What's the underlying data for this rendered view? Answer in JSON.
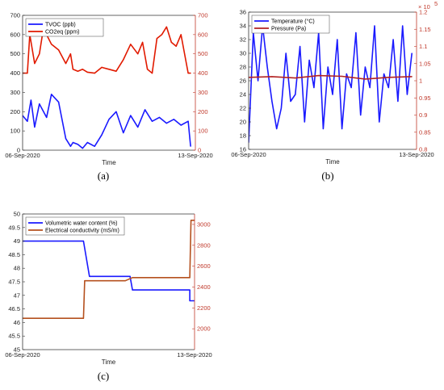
{
  "chart_data": [
    {
      "type": "line",
      "panel_label": "(a)",
      "xlabel": "Time",
      "x_ticks": [
        "06-Sep-2020",
        "13-Sep-2020"
      ],
      "y_left": {
        "lim": [
          0,
          700
        ],
        "ticks": [
          0,
          100,
          200,
          300,
          400,
          500,
          600,
          700
        ]
      },
      "y_right": {
        "lim": [
          0,
          700
        ],
        "ticks": [
          0,
          100,
          200,
          300,
          400,
          500,
          600,
          700
        ]
      },
      "legend": "top-left",
      "series": [
        {
          "name": "TVOC (ppb)",
          "color": "#1a1aff",
          "axis": "left",
          "x": [
            0,
            0.2,
            0.35,
            0.5,
            0.7,
            1.0,
            1.2,
            1.5,
            1.8,
            2.0,
            2.1,
            2.3,
            2.5,
            2.7,
            3.0,
            3.3,
            3.6,
            3.9,
            4.2,
            4.5,
            4.8,
            5.1,
            5.4,
            5.7,
            6.0,
            6.3,
            6.6,
            6.9,
            7.0
          ],
          "values": [
            180,
            150,
            260,
            120,
            240,
            170,
            290,
            250,
            60,
            20,
            40,
            30,
            10,
            40,
            20,
            80,
            160,
            200,
            90,
            180,
            120,
            210,
            150,
            170,
            140,
            160,
            130,
            150,
            20
          ]
        },
        {
          "name": "CO2eq (ppm)",
          "color": "#e11a00",
          "axis": "right",
          "x": [
            0,
            0.2,
            0.3,
            0.5,
            0.7,
            0.9,
            1.0,
            1.2,
            1.5,
            1.8,
            2.0,
            2.1,
            2.3,
            2.5,
            2.7,
            3.0,
            3.3,
            3.6,
            3.9,
            4.2,
            4.5,
            4.8,
            5.0,
            5.2,
            5.4,
            5.6,
            5.8,
            6.0,
            6.2,
            6.4,
            6.6,
            6.9,
            7.0
          ],
          "values": [
            400,
            400,
            600,
            450,
            500,
            660,
            600,
            550,
            520,
            450,
            500,
            420,
            410,
            420,
            405,
            400,
            430,
            420,
            410,
            470,
            550,
            500,
            560,
            420,
            400,
            580,
            600,
            640,
            560,
            540,
            600,
            400,
            400
          ]
        }
      ]
    },
    {
      "type": "line",
      "panel_label": "(b)",
      "xlabel": "Time",
      "x_ticks": [
        "06-Sep-2020",
        "13-Sep-2020"
      ],
      "y_left": {
        "lim": [
          16,
          36
        ],
        "ticks": [
          16,
          18,
          20,
          22,
          24,
          26,
          28,
          30,
          32,
          34,
          36
        ]
      },
      "y_right": {
        "lim": [
          0.8,
          1.2
        ],
        "ticks": [
          0.8,
          0.85,
          0.9,
          0.95,
          1,
          1.05,
          1.1,
          1.15,
          1.2
        ],
        "exponent": "× 10^5"
      },
      "legend": "top-left",
      "series": [
        {
          "name": "Temperature (°C)",
          "color": "#1a1aff",
          "axis": "left",
          "x": [
            0,
            0.1,
            0.2,
            0.4,
            0.6,
            0.8,
            1.0,
            1.2,
            1.4,
            1.6,
            1.8,
            2.0,
            2.2,
            2.4,
            2.6,
            2.8,
            3.0,
            3.2,
            3.4,
            3.6,
            3.8,
            4.0,
            4.2,
            4.4,
            4.6,
            4.8,
            5.0,
            5.2,
            5.4,
            5.6,
            5.8,
            6.0,
            6.2,
            6.4,
            6.6,
            6.8,
            7.0
          ],
          "values": [
            17,
            25,
            33,
            26,
            34,
            28,
            23,
            19,
            22,
            30,
            23,
            24,
            31,
            20,
            29,
            25,
            33,
            19,
            28,
            24,
            32,
            19,
            27,
            25,
            33,
            21,
            28,
            25,
            34,
            20,
            27,
            25,
            32,
            23,
            34,
            24,
            30
          ]
        },
        {
          "name": "Pressure (Pa)",
          "color": "#b22222",
          "axis": "right",
          "x": [
            0,
            1.0,
            2.0,
            3.0,
            4.0,
            5.0,
            6.0,
            7.0
          ],
          "values": [
            1.01,
            1.012,
            1.008,
            1.015,
            1.013,
            1.005,
            1.01,
            1.012
          ]
        }
      ]
    },
    {
      "type": "line",
      "panel_label": "(c)",
      "xlabel": "Time",
      "x_ticks": [
        "06-Sep-2020",
        "13-Sep-2020"
      ],
      "y_left": {
        "lim": [
          45,
          50
        ],
        "ticks": [
          45,
          45.5,
          46,
          46.5,
          47,
          47.5,
          48,
          48.5,
          49,
          49.5,
          50
        ]
      },
      "y_right": {
        "lim": [
          1800,
          3100
        ],
        "ticks": [
          2000,
          2200,
          2400,
          2600,
          2800,
          3000
        ]
      },
      "legend": "top-left",
      "series": [
        {
          "name": "Volumetric water content (%)",
          "color": "#1a1aff",
          "axis": "left",
          "x": [
            0,
            2.55,
            2.8,
            4.5,
            4.6,
            7.0,
            7.0,
            7.2
          ],
          "values": [
            49,
            49,
            47.7,
            47.7,
            47.2,
            47.2,
            46.8,
            46.8
          ]
        },
        {
          "name": "Electrical conductivity (mS/m)",
          "color": "#b5501e",
          "axis": "right",
          "x": [
            0,
            2.55,
            2.6,
            4.3,
            4.6,
            7.0,
            7.05,
            7.2
          ],
          "values": [
            2100,
            2100,
            2460,
            2460,
            2490,
            2490,
            3040,
            3040
          ]
        }
      ]
    }
  ]
}
